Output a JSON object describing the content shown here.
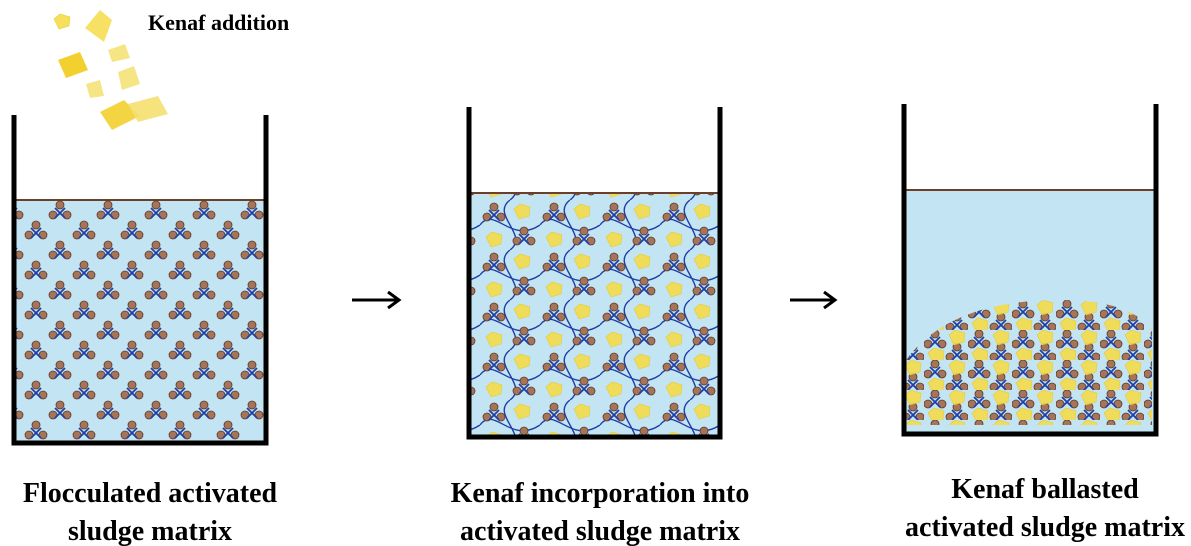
{
  "annotation": "Kenaf addition",
  "panels": [
    {
      "caption": [
        "Flocculated activated",
        "sludge matrix"
      ]
    },
    {
      "caption": [
        "Kenaf incorporation into",
        "activated sludge matrix"
      ]
    },
    {
      "caption": [
        "Kenaf ballasted",
        "activated sludge matrix"
      ]
    }
  ]
}
